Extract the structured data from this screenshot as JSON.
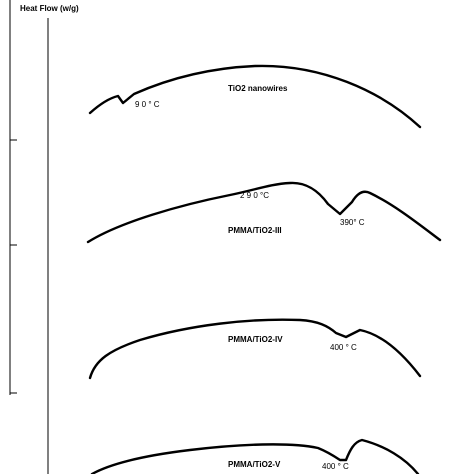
{
  "axis_label": "Heat Flow (w/g)",
  "curves": [
    {
      "label": "TiO2 nanowires",
      "annotations": [
        "9 0 ° C"
      ]
    },
    {
      "label": "PMMA/TiO2-III",
      "annotations": [
        "2 9 0 °C",
        "390° C"
      ]
    },
    {
      "label": "PMMA/TiO2-IV",
      "annotations": [
        "400 ° C"
      ]
    },
    {
      "label": "PMMA/TiO2-V",
      "annotations": [
        "400 ° C"
      ]
    }
  ]
}
